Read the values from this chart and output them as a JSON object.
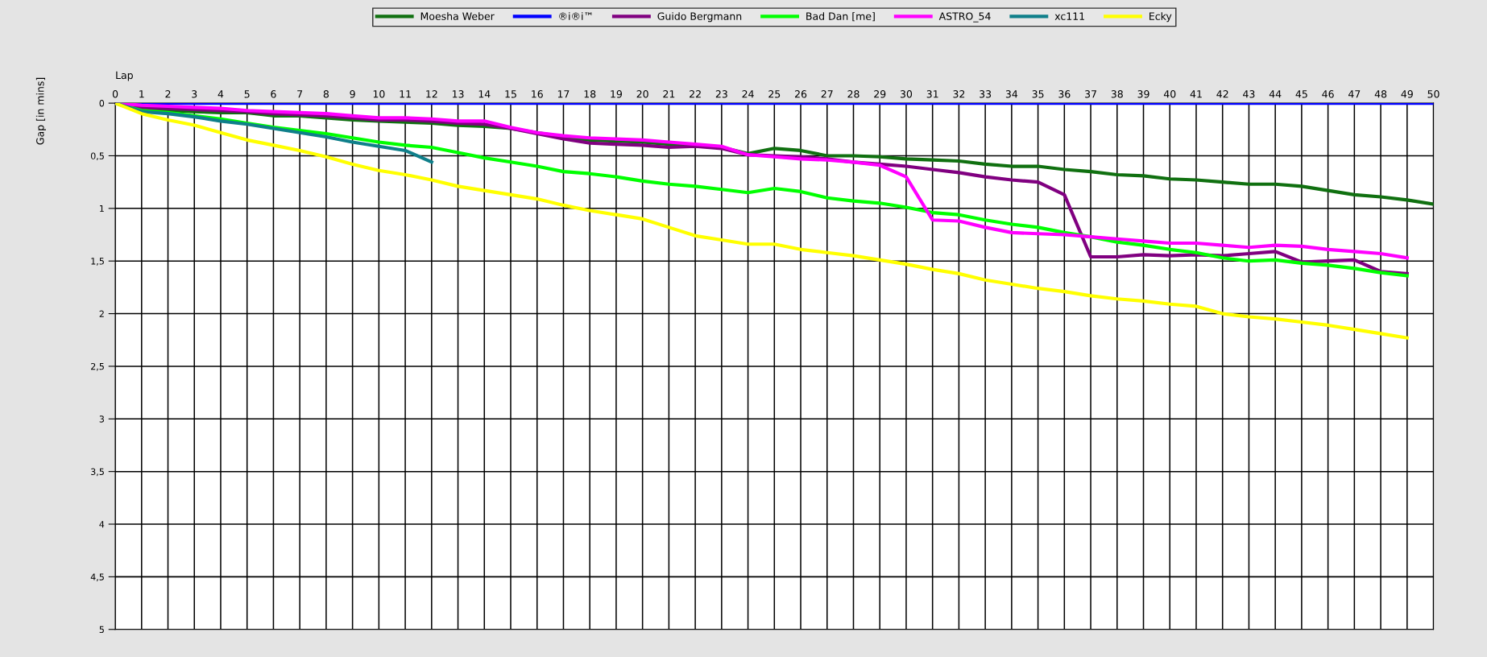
{
  "chart_data": {
    "type": "line",
    "xlabel": "Lap",
    "ylabel": "Gap [in mins]",
    "x": [
      0,
      1,
      2,
      3,
      4,
      5,
      6,
      7,
      8,
      9,
      10,
      11,
      12,
      13,
      14,
      15,
      16,
      17,
      18,
      19,
      20,
      21,
      22,
      23,
      24,
      25,
      26,
      27,
      28,
      29,
      30,
      31,
      32,
      33,
      34,
      35,
      36,
      37,
      38,
      39,
      40,
      41,
      42,
      43,
      44,
      45,
      46,
      47,
      48,
      49,
      50
    ],
    "xlim": [
      0,
      50
    ],
    "xticks": [
      0,
      1,
      2,
      3,
      4,
      5,
      6,
      7,
      8,
      9,
      10,
      11,
      12,
      13,
      14,
      15,
      16,
      17,
      18,
      19,
      20,
      21,
      22,
      23,
      24,
      25,
      26,
      27,
      28,
      29,
      30,
      31,
      32,
      33,
      34,
      35,
      36,
      37,
      38,
      39,
      40,
      41,
      42,
      43,
      44,
      45,
      46,
      47,
      48,
      49,
      50
    ],
    "ylim": [
      5,
      0
    ],
    "yticks": [
      0,
      {
        "value": 0.5,
        "label": "0,5"
      },
      1,
      {
        "value": 1.5,
        "label": "1,5"
      },
      2,
      {
        "value": 2.5,
        "label": "2,5"
      },
      3,
      {
        "value": 3.5,
        "label": "3,5"
      },
      4,
      {
        "value": 4.5,
        "label": "4,5"
      },
      5
    ],
    "grid": true,
    "legend": "top",
    "marker": "none",
    "line_style": "solid",
    "series": [
      {
        "name": "Moesha Weber",
        "color": "#107010",
        "values": [
          0,
          0.06,
          0.07,
          0.08,
          0.09,
          0.09,
          0.12,
          0.12,
          0.14,
          0.16,
          0.17,
          0.18,
          0.19,
          0.21,
          0.22,
          0.24,
          0.28,
          0.32,
          0.35,
          0.36,
          0.37,
          0.39,
          0.4,
          0.42,
          0.48,
          0.43,
          0.45,
          0.5,
          0.5,
          0.51,
          0.53,
          0.54,
          0.55,
          0.58,
          0.6,
          0.6,
          0.63,
          0.65,
          0.68,
          0.69,
          0.72,
          0.73,
          0.75,
          0.77,
          0.77,
          0.79,
          0.83,
          0.87,
          0.89,
          0.92,
          0.96
        ]
      },
      {
        "name": "®i®i™",
        "color": "#0000ff",
        "values": [
          0,
          0,
          0,
          0,
          0,
          0,
          0,
          0,
          0,
          0,
          0,
          0,
          0,
          0,
          0,
          0,
          0,
          0,
          0,
          0,
          0,
          0,
          0,
          0,
          0,
          0,
          0,
          0,
          0,
          0,
          0,
          0,
          0,
          0,
          0,
          0,
          0,
          0,
          0,
          0,
          0,
          0,
          0,
          0,
          0,
          0,
          0,
          0,
          0,
          0,
          0
        ]
      },
      {
        "name": "Guido Bergmann",
        "color": "#800080",
        "values": [
          0,
          0.04,
          0.05,
          0.06,
          0.07,
          0.08,
          0.1,
          0.11,
          0.12,
          0.14,
          0.16,
          0.16,
          0.17,
          0.19,
          0.2,
          0.24,
          0.29,
          0.34,
          0.38,
          0.39,
          0.4,
          0.42,
          0.41,
          0.43,
          0.49,
          0.5,
          0.51,
          0.53,
          0.56,
          0.58,
          0.6,
          0.63,
          0.66,
          0.7,
          0.73,
          0.75,
          0.87,
          1.46,
          1.46,
          1.44,
          1.45,
          1.44,
          1.45,
          1.43,
          1.41,
          1.51,
          1.5,
          1.49,
          1.6,
          1.62,
          null
        ]
      },
      {
        "name": "Bad Dan [me]",
        "color": "#00ff00",
        "values": [
          0,
          0.07,
          0.09,
          0.12,
          0.15,
          0.19,
          0.23,
          0.26,
          0.29,
          0.33,
          0.37,
          0.4,
          0.42,
          0.47,
          0.52,
          0.56,
          0.6,
          0.65,
          0.67,
          0.7,
          0.74,
          0.77,
          0.79,
          0.82,
          0.85,
          0.81,
          0.84,
          0.9,
          0.93,
          0.95,
          0.99,
          1.04,
          1.06,
          1.11,
          1.15,
          1.18,
          1.23,
          1.27,
          1.32,
          1.35,
          1.39,
          1.42,
          1.47,
          1.5,
          1.49,
          1.52,
          1.54,
          1.57,
          1.61,
          1.64,
          null
        ]
      },
      {
        "name": "ASTRO_54",
        "color": "#ff00ff",
        "values": [
          0,
          0.02,
          0.03,
          0.04,
          0.05,
          0.07,
          0.08,
          0.09,
          0.1,
          0.12,
          0.14,
          0.14,
          0.15,
          0.17,
          0.17,
          0.23,
          0.28,
          0.31,
          0.33,
          0.34,
          0.35,
          0.37,
          0.39,
          0.41,
          0.49,
          0.51,
          0.53,
          0.54,
          0.56,
          0.59,
          0.7,
          1.11,
          1.12,
          1.18,
          1.23,
          1.24,
          1.25,
          1.27,
          1.29,
          1.31,
          1.33,
          1.33,
          1.35,
          1.37,
          1.35,
          1.36,
          1.39,
          1.41,
          1.43,
          1.47,
          null
        ]
      },
      {
        "name": "xc111",
        "color": "#0f7f8a",
        "values": [
          0,
          0.08,
          0.1,
          0.13,
          0.17,
          0.2,
          0.24,
          0.28,
          0.32,
          0.37,
          0.41,
          0.45,
          0.56,
          null,
          null,
          null,
          null,
          null,
          null,
          null,
          null,
          null,
          null,
          null,
          null,
          null,
          null,
          null,
          null,
          null,
          null,
          null,
          null,
          null,
          null,
          null,
          null,
          null,
          null,
          null,
          null,
          null,
          null,
          null,
          null,
          null,
          null,
          null,
          null,
          null,
          null
        ]
      },
      {
        "name": "Ecky",
        "color": "#ffff00",
        "values": [
          0,
          0.1,
          0.16,
          0.21,
          0.28,
          0.35,
          0.4,
          0.45,
          0.51,
          0.58,
          0.64,
          0.68,
          0.73,
          0.79,
          0.83,
          0.87,
          0.91,
          0.97,
          1.02,
          1.06,
          1.1,
          1.18,
          1.26,
          1.3,
          1.34,
          1.34,
          1.39,
          1.42,
          1.45,
          1.49,
          1.53,
          1.58,
          1.62,
          1.68,
          1.72,
          1.76,
          1.79,
          1.83,
          1.86,
          1.88,
          1.91,
          1.93,
          2.0,
          2.03,
          2.05,
          2.08,
          2.11,
          2.15,
          2.19,
          2.23,
          null
        ]
      }
    ]
  }
}
